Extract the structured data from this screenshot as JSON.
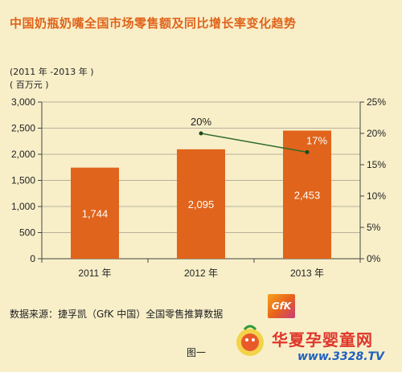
{
  "title": "中国奶瓶奶嘴全国市场零售额及同比增长率变化趋势",
  "unit_line1": "(2011 年 -2013 年 )",
  "unit_line2": "( 百万元 )",
  "source": "数据来源：捷孚凯（GfK 中国）全国零售推算数据",
  "logo_text": "GfK",
  "figure_caption": "图一",
  "watermark": {
    "name": "华夏孕婴童网",
    "url": "www.3328.TV"
  },
  "colors": {
    "bar": "#e0641b",
    "line": "#2f6b2f",
    "background": "#f8efc9",
    "title": "#e0641b"
  },
  "chart_data": {
    "type": "bar",
    "categories": [
      "2011 年",
      "2012 年",
      "2013 年"
    ],
    "values": [
      1744,
      2095,
      2453
    ],
    "value_labels": [
      "1,744",
      "2,095",
      "2,453"
    ],
    "ylim": [
      0,
      3000
    ],
    "yticks": [
      0,
      500,
      1000,
      1500,
      2000,
      2500,
      3000
    ],
    "ytick_labels": [
      "0",
      "500",
      "1,000",
      "1,500",
      "2,000",
      "2,500",
      "3,000"
    ],
    "y2lim": [
      0,
      25
    ],
    "y2ticks": [
      0,
      5,
      10,
      15,
      20,
      25
    ],
    "y2tick_labels": [
      "0%",
      "5%",
      "10%",
      "15%",
      "20%",
      "25%"
    ],
    "growth": {
      "type": "line",
      "categories": [
        "2012 年",
        "2013 年"
      ],
      "values": [
        20,
        17
      ],
      "labels": [
        "20%",
        "17%"
      ]
    },
    "grid": true
  }
}
